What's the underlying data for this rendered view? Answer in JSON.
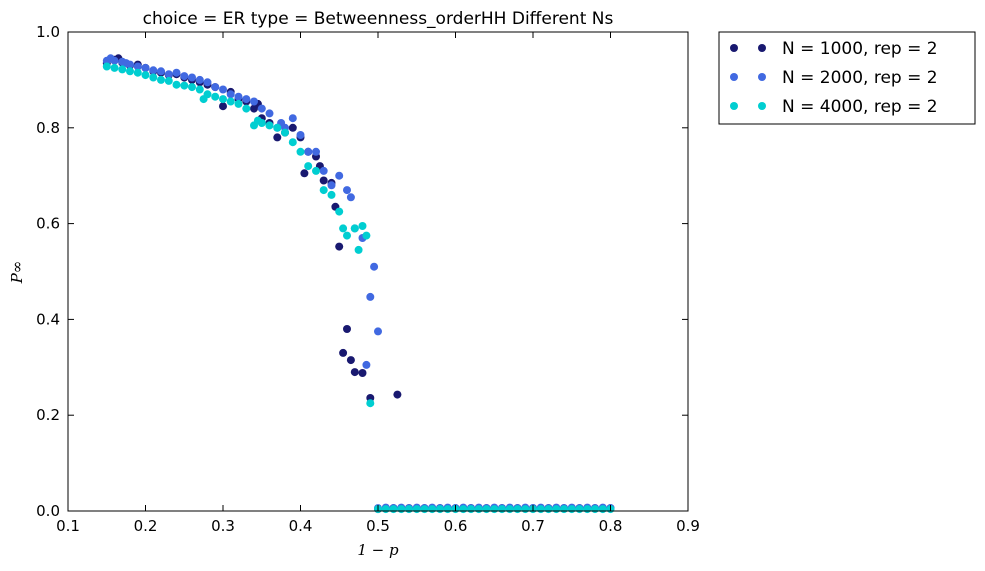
{
  "chart_data": {
    "type": "scatter",
    "title": "choice = ER type = Betweenness_orderHH Different Ns",
    "xlabel": "1 − p",
    "ylabel": "P∞",
    "xlim": [
      0.1,
      0.9
    ],
    "ylim": [
      0.0,
      1.0
    ],
    "xticks": [
      "0.1",
      "0.2",
      "0.3",
      "0.4",
      "0.5",
      "0.6",
      "0.7",
      "0.8",
      "0.9"
    ],
    "yticks": [
      "0.0",
      "0.2",
      "0.4",
      "0.6",
      "0.8",
      "1.0"
    ],
    "legend_position": "outside-top-right",
    "grid": false,
    "series": [
      {
        "name": "N = 1000, rep = 2",
        "color": "#191970",
        "points": [
          [
            0.15,
            0.935
          ],
          [
            0.16,
            0.942
          ],
          [
            0.165,
            0.945
          ],
          [
            0.17,
            0.936
          ],
          [
            0.18,
            0.93
          ],
          [
            0.19,
            0.932
          ],
          [
            0.2,
            0.925
          ],
          [
            0.21,
            0.918
          ],
          [
            0.22,
            0.915
          ],
          [
            0.23,
            0.91
          ],
          [
            0.24,
            0.912
          ],
          [
            0.25,
            0.905
          ],
          [
            0.26,
            0.9
          ],
          [
            0.27,
            0.895
          ],
          [
            0.28,
            0.89
          ],
          [
            0.29,
            0.885
          ],
          [
            0.3,
            0.845
          ],
          [
            0.31,
            0.875
          ],
          [
            0.32,
            0.86
          ],
          [
            0.33,
            0.855
          ],
          [
            0.34,
            0.84
          ],
          [
            0.345,
            0.85
          ],
          [
            0.35,
            0.82
          ],
          [
            0.36,
            0.81
          ],
          [
            0.37,
            0.78
          ],
          [
            0.38,
            0.79
          ],
          [
            0.39,
            0.8
          ],
          [
            0.4,
            0.78
          ],
          [
            0.405,
            0.705
          ],
          [
            0.41,
            0.75
          ],
          [
            0.42,
            0.74
          ],
          [
            0.425,
            0.72
          ],
          [
            0.43,
            0.69
          ],
          [
            0.44,
            0.685
          ],
          [
            0.445,
            0.635
          ],
          [
            0.45,
            0.552
          ],
          [
            0.455,
            0.33
          ],
          [
            0.46,
            0.38
          ],
          [
            0.465,
            0.315
          ],
          [
            0.47,
            0.29
          ],
          [
            0.48,
            0.288
          ],
          [
            0.49,
            0.236
          ],
          [
            0.525,
            0.243
          ],
          [
            0.5,
            0.004
          ],
          [
            0.51,
            0.005
          ],
          [
            0.52,
            0.006
          ],
          [
            0.53,
            0.005
          ],
          [
            0.54,
            0.006
          ],
          [
            0.55,
            0.005
          ],
          [
            0.56,
            0.006
          ],
          [
            0.57,
            0.005
          ],
          [
            0.58,
            0.006
          ],
          [
            0.59,
            0.005
          ],
          [
            0.6,
            0.006
          ],
          [
            0.61,
            0.005
          ],
          [
            0.62,
            0.006
          ],
          [
            0.63,
            0.005
          ],
          [
            0.64,
            0.006
          ],
          [
            0.65,
            0.005
          ],
          [
            0.66,
            0.006
          ],
          [
            0.67,
            0.005
          ],
          [
            0.68,
            0.006
          ],
          [
            0.69,
            0.005
          ],
          [
            0.7,
            0.006
          ],
          [
            0.71,
            0.005
          ],
          [
            0.72,
            0.006
          ],
          [
            0.73,
            0.005
          ],
          [
            0.74,
            0.006
          ],
          [
            0.75,
            0.005
          ],
          [
            0.76,
            0.006
          ],
          [
            0.77,
            0.005
          ],
          [
            0.78,
            0.006
          ],
          [
            0.79,
            0.005
          ],
          [
            0.8,
            0.006
          ]
        ]
      },
      {
        "name": "N = 2000, rep = 2",
        "color": "#4169E1",
        "points": [
          [
            0.15,
            0.94
          ],
          [
            0.155,
            0.945
          ],
          [
            0.16,
            0.94
          ],
          [
            0.17,
            0.938
          ],
          [
            0.175,
            0.935
          ],
          [
            0.18,
            0.932
          ],
          [
            0.19,
            0.928
          ],
          [
            0.2,
            0.925
          ],
          [
            0.21,
            0.92
          ],
          [
            0.22,
            0.918
          ],
          [
            0.23,
            0.912
          ],
          [
            0.24,
            0.915
          ],
          [
            0.25,
            0.908
          ],
          [
            0.26,
            0.905
          ],
          [
            0.27,
            0.9
          ],
          [
            0.28,
            0.895
          ],
          [
            0.29,
            0.885
          ],
          [
            0.3,
            0.88
          ],
          [
            0.31,
            0.87
          ],
          [
            0.32,
            0.865
          ],
          [
            0.33,
            0.86
          ],
          [
            0.34,
            0.855
          ],
          [
            0.35,
            0.84
          ],
          [
            0.36,
            0.83
          ],
          [
            0.37,
            0.8
          ],
          [
            0.375,
            0.81
          ],
          [
            0.38,
            0.8
          ],
          [
            0.39,
            0.82
          ],
          [
            0.4,
            0.785
          ],
          [
            0.41,
            0.75
          ],
          [
            0.42,
            0.75
          ],
          [
            0.43,
            0.71
          ],
          [
            0.44,
            0.68
          ],
          [
            0.45,
            0.7
          ],
          [
            0.46,
            0.67
          ],
          [
            0.465,
            0.655
          ],
          [
            0.47,
            0.59
          ],
          [
            0.48,
            0.57
          ],
          [
            0.485,
            0.305
          ],
          [
            0.49,
            0.447
          ],
          [
            0.495,
            0.51
          ],
          [
            0.5,
            0.375
          ],
          [
            0.5,
            0.006
          ],
          [
            0.51,
            0.007
          ],
          [
            0.52,
            0.006
          ],
          [
            0.53,
            0.007
          ],
          [
            0.54,
            0.006
          ],
          [
            0.55,
            0.007
          ],
          [
            0.56,
            0.006
          ],
          [
            0.57,
            0.007
          ],
          [
            0.58,
            0.006
          ],
          [
            0.59,
            0.007
          ],
          [
            0.6,
            0.006
          ],
          [
            0.61,
            0.007
          ],
          [
            0.62,
            0.006
          ],
          [
            0.63,
            0.007
          ],
          [
            0.64,
            0.006
          ],
          [
            0.65,
            0.007
          ],
          [
            0.66,
            0.006
          ],
          [
            0.67,
            0.007
          ],
          [
            0.68,
            0.006
          ],
          [
            0.69,
            0.007
          ],
          [
            0.7,
            0.006
          ],
          [
            0.71,
            0.007
          ],
          [
            0.72,
            0.006
          ],
          [
            0.73,
            0.007
          ],
          [
            0.74,
            0.006
          ],
          [
            0.75,
            0.007
          ],
          [
            0.76,
            0.006
          ],
          [
            0.77,
            0.007
          ],
          [
            0.78,
            0.006
          ],
          [
            0.79,
            0.007
          ],
          [
            0.8,
            0.006
          ]
        ]
      },
      {
        "name": "N = 4000, rep = 2",
        "color": "#00CED1",
        "points": [
          [
            0.15,
            0.928
          ],
          [
            0.16,
            0.925
          ],
          [
            0.17,
            0.922
          ],
          [
            0.18,
            0.918
          ],
          [
            0.19,
            0.915
          ],
          [
            0.2,
            0.91
          ],
          [
            0.21,
            0.905
          ],
          [
            0.22,
            0.9
          ],
          [
            0.23,
            0.898
          ],
          [
            0.24,
            0.89
          ],
          [
            0.25,
            0.888
          ],
          [
            0.26,
            0.885
          ],
          [
            0.27,
            0.88
          ],
          [
            0.275,
            0.86
          ],
          [
            0.28,
            0.87
          ],
          [
            0.29,
            0.865
          ],
          [
            0.3,
            0.86
          ],
          [
            0.31,
            0.855
          ],
          [
            0.32,
            0.85
          ],
          [
            0.33,
            0.84
          ],
          [
            0.34,
            0.805
          ],
          [
            0.345,
            0.815
          ],
          [
            0.35,
            0.81
          ],
          [
            0.36,
            0.805
          ],
          [
            0.37,
            0.8
          ],
          [
            0.38,
            0.79
          ],
          [
            0.39,
            0.77
          ],
          [
            0.4,
            0.75
          ],
          [
            0.41,
            0.72
          ],
          [
            0.42,
            0.71
          ],
          [
            0.43,
            0.67
          ],
          [
            0.44,
            0.66
          ],
          [
            0.45,
            0.625
          ],
          [
            0.455,
            0.59
          ],
          [
            0.46,
            0.575
          ],
          [
            0.47,
            0.59
          ],
          [
            0.475,
            0.545
          ],
          [
            0.48,
            0.595
          ],
          [
            0.485,
            0.575
          ],
          [
            0.49,
            0.225
          ],
          [
            0.5,
            0.004
          ],
          [
            0.51,
            0.004
          ],
          [
            0.52,
            0.004
          ],
          [
            0.53,
            0.004
          ],
          [
            0.54,
            0.004
          ],
          [
            0.55,
            0.004
          ],
          [
            0.56,
            0.004
          ],
          [
            0.57,
            0.004
          ],
          [
            0.58,
            0.004
          ],
          [
            0.59,
            0.004
          ],
          [
            0.6,
            0.004
          ],
          [
            0.61,
            0.004
          ],
          [
            0.62,
            0.004
          ],
          [
            0.63,
            0.004
          ],
          [
            0.64,
            0.004
          ],
          [
            0.65,
            0.004
          ],
          [
            0.66,
            0.004
          ],
          [
            0.67,
            0.004
          ],
          [
            0.68,
            0.004
          ],
          [
            0.69,
            0.004
          ],
          [
            0.7,
            0.004
          ],
          [
            0.71,
            0.004
          ],
          [
            0.72,
            0.004
          ],
          [
            0.73,
            0.004
          ],
          [
            0.74,
            0.004
          ],
          [
            0.75,
            0.004
          ],
          [
            0.76,
            0.004
          ],
          [
            0.77,
            0.004
          ],
          [
            0.78,
            0.004
          ],
          [
            0.79,
            0.004
          ],
          [
            0.8,
            0.004
          ]
        ]
      }
    ]
  }
}
